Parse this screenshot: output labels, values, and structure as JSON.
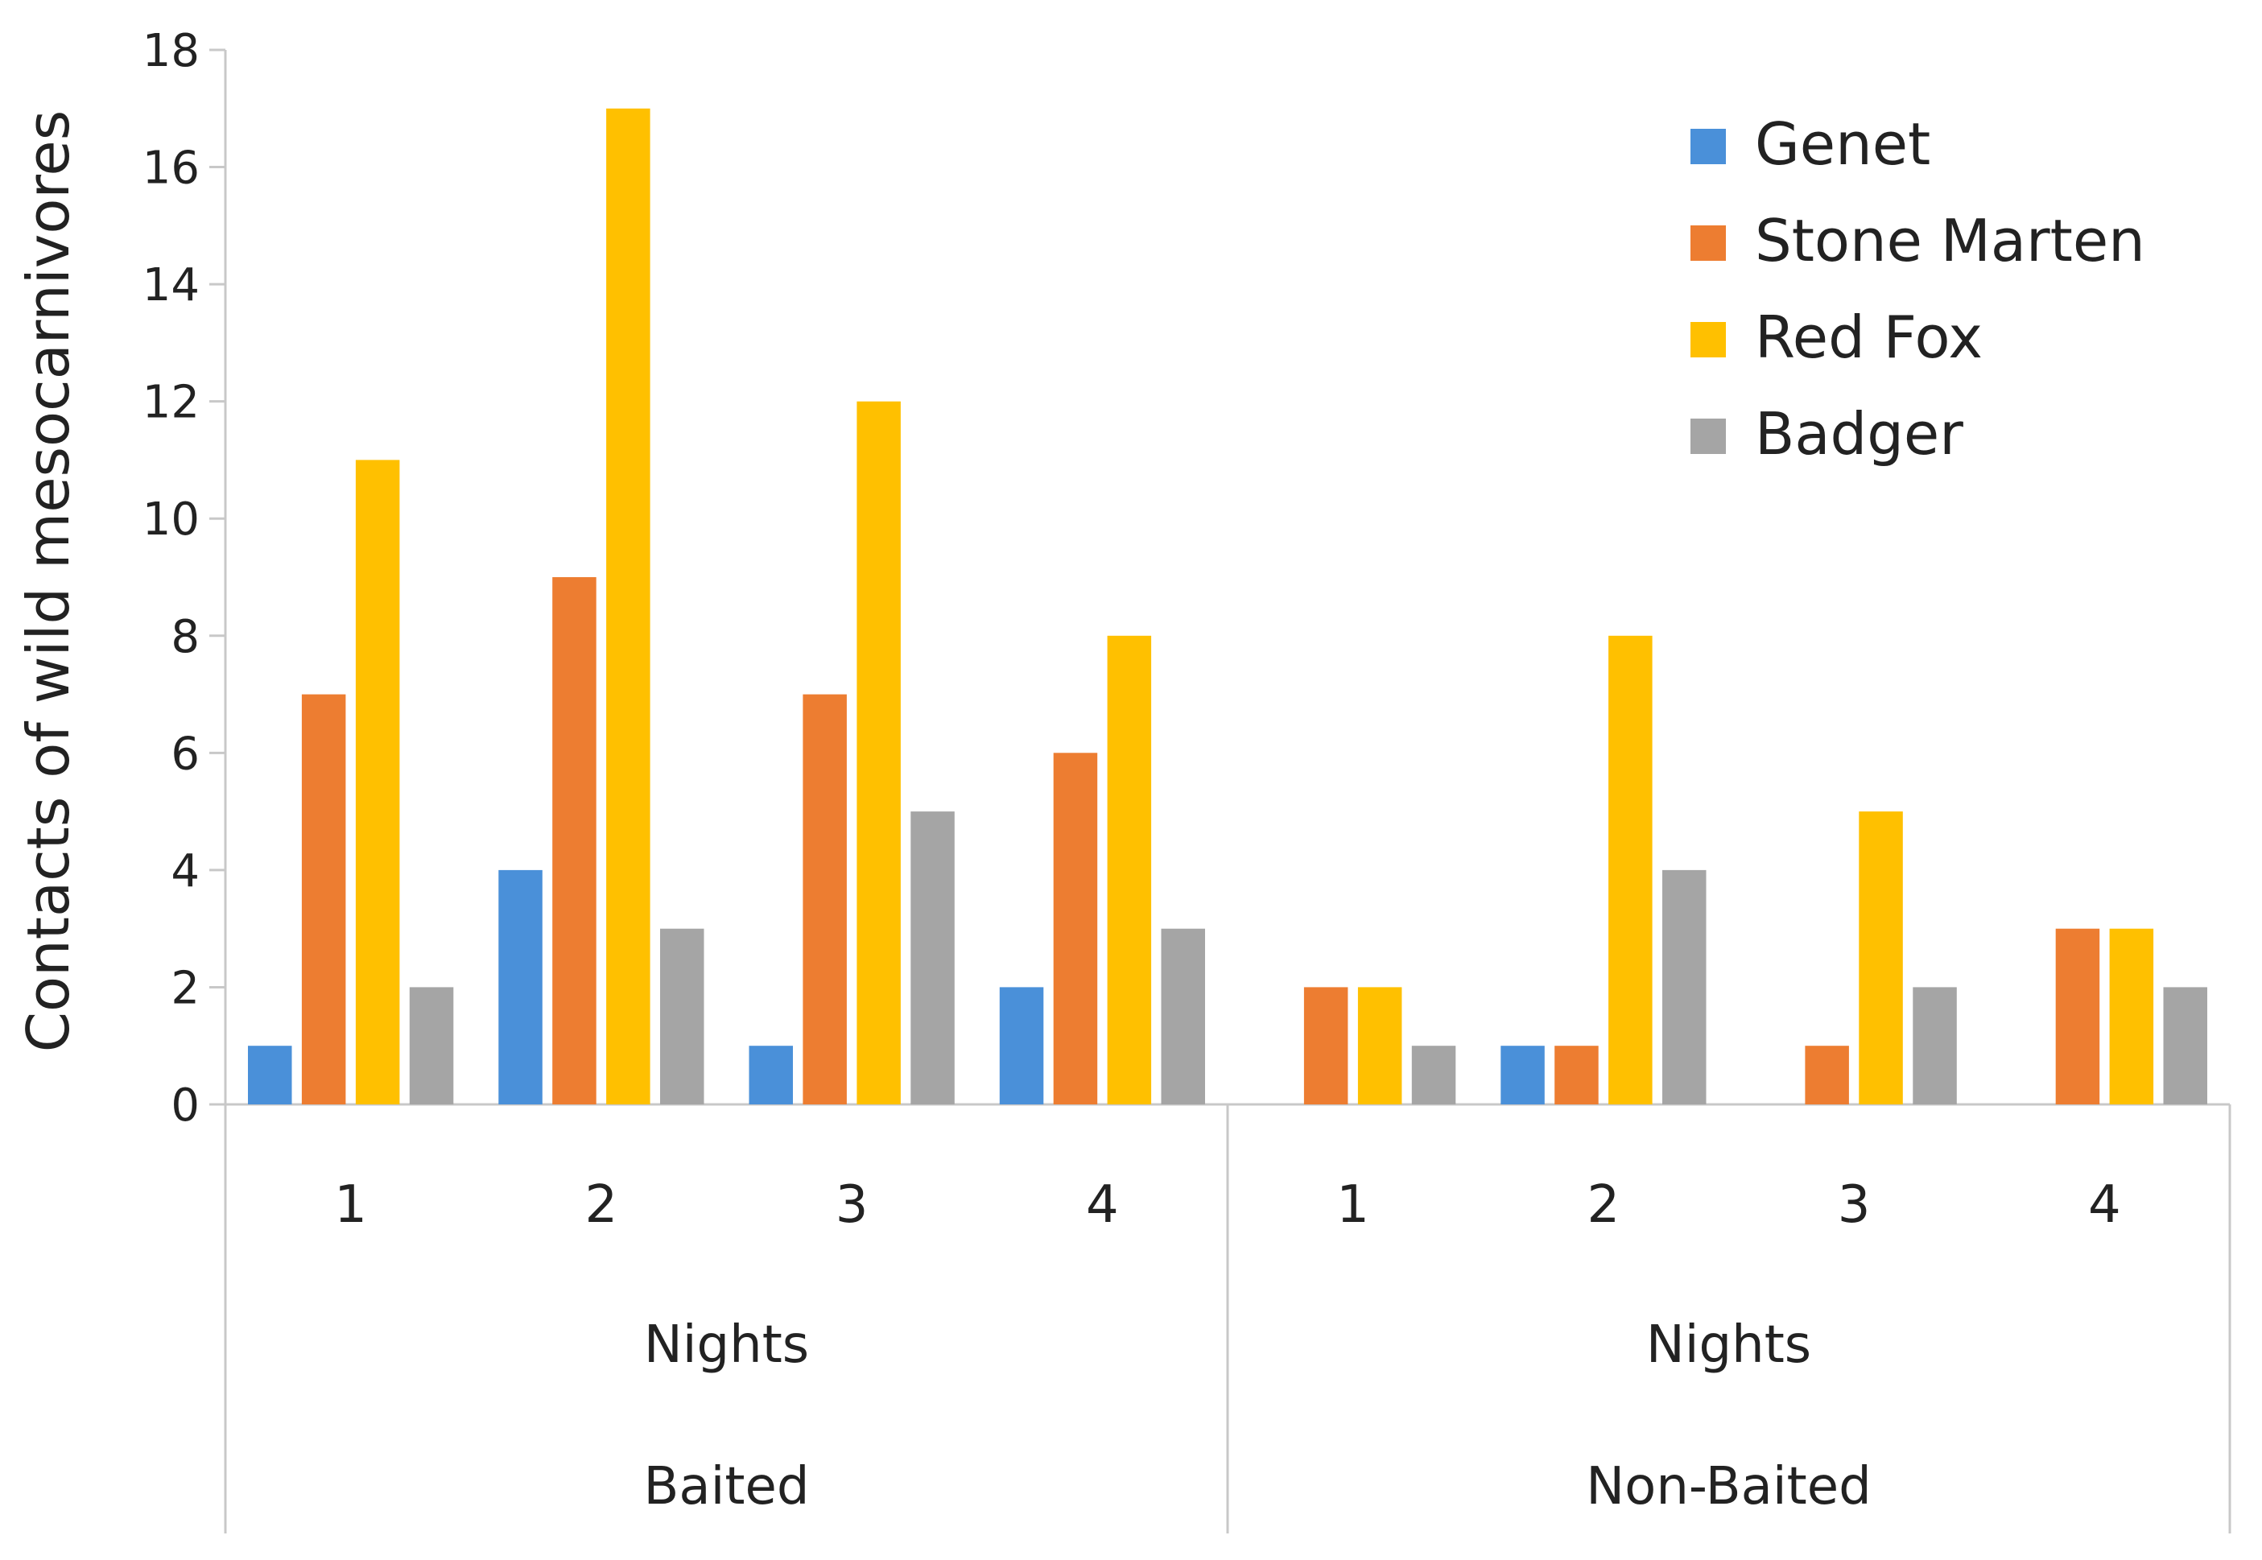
{
  "chart_data": {
    "type": "bar",
    "title": "",
    "xlabel": "",
    "ylabel": "Contacts of wild mesocarnivores",
    "ylim": [
      0,
      18
    ],
    "yticks": [
      0,
      2,
      4,
      6,
      8,
      10,
      12,
      14,
      16,
      18
    ],
    "grid": false,
    "legend_position": "top-right",
    "groups": [
      {
        "label": "Baited",
        "sublabel": "Nights",
        "categories": [
          "1",
          "2",
          "3",
          "4"
        ]
      },
      {
        "label": "Non-Baited",
        "sublabel": "Nights",
        "categories": [
          "1",
          "2",
          "3",
          "4"
        ]
      }
    ],
    "series": [
      {
        "name": "Genet",
        "color": "#4a90d9",
        "values": [
          1,
          4,
          1,
          2,
          0,
          1,
          0,
          0
        ]
      },
      {
        "name": "Stone Marten",
        "color": "#ed7d31",
        "values": [
          7,
          9,
          7,
          6,
          2,
          1,
          1,
          3
        ]
      },
      {
        "name": "Red Fox",
        "color": "#ffc000",
        "values": [
          11,
          17,
          12,
          8,
          2,
          8,
          5,
          3
        ]
      },
      {
        "name": "Badger",
        "color": "#a5a5a5",
        "values": [
          2,
          3,
          5,
          3,
          1,
          4,
          2,
          2
        ]
      }
    ]
  }
}
